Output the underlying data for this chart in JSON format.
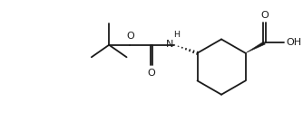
{
  "background_color": "#ffffff",
  "line_color": "#1a1a1a",
  "line_width": 1.3,
  "figsize": [
    3.34,
    1.34
  ],
  "dpi": 100,
  "font_size": 8.0,
  "xlim": [
    0.0,
    10.0
  ],
  "ylim": [
    0.3,
    4.3
  ]
}
